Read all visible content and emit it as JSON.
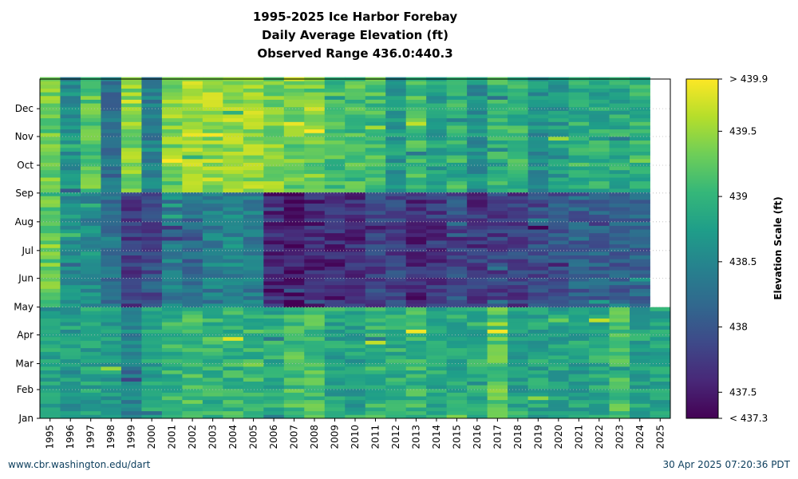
{
  "chart_data": {
    "type": "heatmap",
    "title_lines": [
      "1995-2025 Ice Harbor Forebay",
      "Daily Average Elevation (ft)",
      "Observed Range 436.0:440.3"
    ],
    "x_tick_labels": [
      "1995",
      "1996",
      "1997",
      "1998",
      "1999",
      "2000",
      "2001",
      "2002",
      "2003",
      "2004",
      "2005",
      "2006",
      "2007",
      "2008",
      "2009",
      "2010",
      "2011",
      "2012",
      "2013",
      "2014",
      "2015",
      "2016",
      "2017",
      "2018",
      "2019",
      "2020",
      "2021",
      "2022",
      "2023",
      "2024",
      "2025"
    ],
    "y_tick_labels": [
      "Jan",
      "Feb",
      "Mar",
      "Apr",
      "May",
      "Jun",
      "Jul",
      "Aug",
      "Sep",
      "Oct",
      "Nov",
      "Dec"
    ],
    "colorbar": {
      "label": "Elevation Scale (ft)",
      "min": 437.3,
      "max": 439.9,
      "tick_labels": [
        "> 439.9",
        "439.5",
        "439",
        "438.5",
        "438",
        "437.5",
        "< 437.3"
      ],
      "tick_values": [
        439.9,
        439.5,
        439.0,
        438.5,
        438.0,
        437.5,
        437.3
      ],
      "colormap": [
        "#440154",
        "#482878",
        "#3e4989",
        "#31688e",
        "#26828e",
        "#1f9e89",
        "#35b779",
        "#6ece58",
        "#b5de2b",
        "#fde725"
      ]
    },
    "approx_elevation_by_year": {
      "description_rows": [
        "Jan-Apr",
        "May-Aug",
        "Sep-Dec"
      ],
      "values": [
        [
          438.8,
          439.3,
          439.3
        ],
        [
          438.7,
          438.6,
          438.6
        ],
        [
          438.8,
          438.6,
          439.2
        ],
        [
          438.7,
          438.3,
          438.3
        ],
        [
          438.5,
          437.8,
          439.4
        ],
        [
          438.8,
          437.9,
          438.4
        ],
        [
          439.0,
          438.4,
          439.4
        ],
        [
          439.1,
          438.2,
          439.6
        ],
        [
          439.0,
          438.4,
          439.5
        ],
        [
          439.0,
          438.5,
          439.5
        ],
        [
          439.0,
          438.4,
          439.5
        ],
        [
          438.9,
          437.6,
          439.4
        ],
        [
          439.1,
          437.5,
          439.3
        ],
        [
          439.1,
          437.6,
          439.3
        ],
        [
          438.8,
          437.6,
          439.1
        ],
        [
          438.8,
          437.7,
          439.1
        ],
        [
          439.0,
          437.8,
          439.1
        ],
        [
          438.9,
          437.8,
          438.7
        ],
        [
          439.0,
          437.6,
          439.1
        ],
        [
          438.9,
          437.7,
          438.8
        ],
        [
          438.9,
          437.9,
          439.0
        ],
        [
          438.9,
          437.7,
          438.6
        ],
        [
          439.2,
          437.8,
          439.0
        ],
        [
          438.8,
          437.8,
          439.0
        ],
        [
          438.8,
          437.9,
          438.6
        ],
        [
          438.8,
          438.0,
          438.7
        ],
        [
          438.8,
          438.1,
          438.9
        ],
        [
          438.9,
          438.1,
          438.9
        ],
        [
          439.1,
          438.1,
          438.9
        ],
        [
          438.8,
          438.1,
          439.0
        ],
        [
          438.8,
          null,
          null
        ]
      ]
    },
    "grid": true
  },
  "footer": {
    "left": "www.cbr.washington.edu/dart",
    "right": "30 Apr 2025 07:20:36 PDT"
  }
}
